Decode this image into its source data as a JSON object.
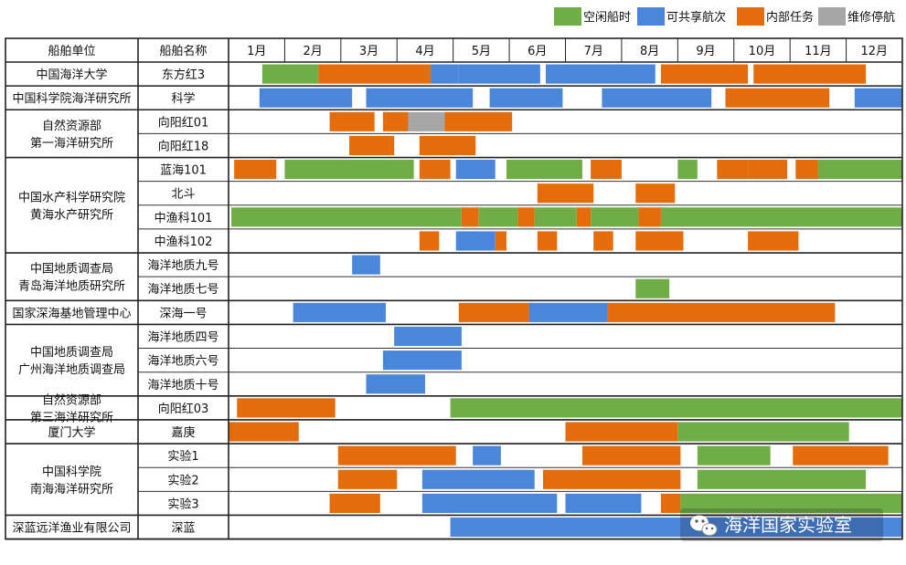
{
  "chart_data": {
    "type": "gantt",
    "title": "",
    "legend": [
      {
        "key": "idle",
        "label": "空闲船时",
        "color": "#70AD47"
      },
      {
        "key": "shared",
        "label": "可共享航次",
        "color": "#4A86D9"
      },
      {
        "key": "internal",
        "label": "内部任务",
        "color": "#E46C0A"
      },
      {
        "key": "repair",
        "label": "维修停航",
        "color": "#A6A6A6"
      }
    ],
    "header": {
      "unit": "船舶单位",
      "ship": "船舶名称"
    },
    "months": [
      "1月",
      "2月",
      "3月",
      "4月",
      "5月",
      "6月",
      "7月",
      "8月",
      "9月",
      "10月",
      "11月",
      "12月"
    ],
    "groups": [
      {
        "name": [
          "中国海洋大学"
        ],
        "ships": [
          {
            "name": "东方红3",
            "segments": [
              {
                "start": 0.6,
                "end": 1.6,
                "type": "idle"
              },
              {
                "start": 1.6,
                "end": 3.6,
                "type": "internal"
              },
              {
                "start": 3.6,
                "end": 4.1,
                "type": "shared"
              },
              {
                "start": 4.1,
                "end": 5.55,
                "type": "shared"
              },
              {
                "start": 5.65,
                "end": 7.6,
                "type": "shared"
              },
              {
                "start": 7.7,
                "end": 9.25,
                "type": "internal"
              },
              {
                "start": 9.35,
                "end": 11.35,
                "type": "internal"
              }
            ]
          }
        ]
      },
      {
        "name": [
          "中国科学院海洋研究所"
        ],
        "ships": [
          {
            "name": "科学",
            "segments": [
              {
                "start": 0.55,
                "end": 2.2,
                "type": "shared"
              },
              {
                "start": 2.45,
                "end": 4.35,
                "type": "shared"
              },
              {
                "start": 4.65,
                "end": 5.95,
                "type": "shared"
              },
              {
                "start": 6.65,
                "end": 8.6,
                "type": "shared"
              },
              {
                "start": 8.85,
                "end": 10.7,
                "type": "internal"
              },
              {
                "start": 11.15,
                "end": 12.0,
                "type": "shared"
              }
            ]
          }
        ]
      },
      {
        "name": [
          "自然资源部",
          "第一海洋研究所"
        ],
        "ships": [
          {
            "name": "向阳红01",
            "segments": [
              {
                "start": 1.8,
                "end": 2.6,
                "type": "internal"
              },
              {
                "start": 2.75,
                "end": 3.2,
                "type": "internal"
              },
              {
                "start": 3.2,
                "end": 3.85,
                "type": "repair"
              },
              {
                "start": 3.85,
                "end": 5.05,
                "type": "internal"
              }
            ]
          },
          {
            "name": "向阳红18",
            "segments": [
              {
                "start": 2.15,
                "end": 2.95,
                "type": "internal"
              },
              {
                "start": 3.4,
                "end": 4.4,
                "type": "internal"
              }
            ]
          }
        ]
      },
      {
        "name": [
          "中国水产科学研究院",
          "黄海水产研究所"
        ],
        "ships": [
          {
            "name": "蓝海101",
            "segments": [
              {
                "start": 0.1,
                "end": 0.85,
                "type": "internal"
              },
              {
                "start": 1.0,
                "end": 3.3,
                "type": "idle"
              },
              {
                "start": 3.4,
                "end": 3.95,
                "type": "internal"
              },
              {
                "start": 4.05,
                "end": 4.75,
                "type": "shared"
              },
              {
                "start": 4.95,
                "end": 6.3,
                "type": "idle"
              },
              {
                "start": 6.45,
                "end": 7.0,
                "type": "internal"
              },
              {
                "start": 8.0,
                "end": 8.35,
                "type": "idle"
              },
              {
                "start": 8.7,
                "end": 9.25,
                "type": "internal"
              },
              {
                "start": 9.25,
                "end": 9.95,
                "type": "internal"
              },
              {
                "start": 10.1,
                "end": 10.5,
                "type": "internal"
              },
              {
                "start": 10.5,
                "end": 12.0,
                "type": "idle"
              }
            ]
          },
          {
            "name": "北斗",
            "segments": [
              {
                "start": 5.5,
                "end": 6.5,
                "type": "internal"
              },
              {
                "start": 7.25,
                "end": 7.95,
                "type": "internal"
              }
            ]
          },
          {
            "name": "中渔科101",
            "segments": [
              {
                "start": 0.05,
                "end": 4.15,
                "type": "idle"
              },
              {
                "start": 4.15,
                "end": 4.45,
                "type": "internal"
              },
              {
                "start": 4.45,
                "end": 5.15,
                "type": "idle"
              },
              {
                "start": 5.15,
                "end": 5.45,
                "type": "internal"
              },
              {
                "start": 5.45,
                "end": 6.2,
                "type": "idle"
              },
              {
                "start": 6.2,
                "end": 6.45,
                "type": "internal"
              },
              {
                "start": 6.45,
                "end": 7.3,
                "type": "idle"
              },
              {
                "start": 7.3,
                "end": 7.7,
                "type": "internal"
              },
              {
                "start": 7.7,
                "end": 12.0,
                "type": "idle"
              }
            ]
          },
          {
            "name": "中渔科102",
            "segments": [
              {
                "start": 3.4,
                "end": 3.75,
                "type": "internal"
              },
              {
                "start": 4.05,
                "end": 4.75,
                "type": "shared"
              },
              {
                "start": 4.75,
                "end": 4.95,
                "type": "internal"
              },
              {
                "start": 5.5,
                "end": 5.85,
                "type": "internal"
              },
              {
                "start": 6.5,
                "end": 6.85,
                "type": "internal"
              },
              {
                "start": 7.25,
                "end": 8.1,
                "type": "internal"
              },
              {
                "start": 9.25,
                "end": 10.15,
                "type": "internal"
              }
            ]
          }
        ]
      },
      {
        "name": [
          "中国地质调查局",
          "青岛海洋地质研究所"
        ],
        "ships": [
          {
            "name": "海洋地质九号",
            "segments": [
              {
                "start": 2.2,
                "end": 2.7,
                "type": "shared"
              }
            ]
          },
          {
            "name": "海洋地质七号",
            "segments": [
              {
                "start": 7.25,
                "end": 7.85,
                "type": "idle"
              }
            ]
          }
        ]
      },
      {
        "name": [
          "国家深海基地管理中心"
        ],
        "ships": [
          {
            "name": "深海一号",
            "segments": [
              {
                "start": 1.15,
                "end": 2.8,
                "type": "shared"
              },
              {
                "start": 4.1,
                "end": 5.35,
                "type": "internal"
              },
              {
                "start": 5.35,
                "end": 6.75,
                "type": "shared"
              },
              {
                "start": 6.75,
                "end": 10.8,
                "type": "internal"
              }
            ]
          }
        ]
      },
      {
        "name": [
          "中国地质调查局",
          "广州海洋地质调查局"
        ],
        "ships": [
          {
            "name": "海洋地质四号",
            "segments": [
              {
                "start": 2.95,
                "end": 4.15,
                "type": "shared"
              }
            ]
          },
          {
            "name": "海洋地质六号",
            "segments": [
              {
                "start": 2.75,
                "end": 4.15,
                "type": "shared"
              }
            ]
          },
          {
            "name": "海洋地质十号",
            "segments": [
              {
                "start": 2.45,
                "end": 3.5,
                "type": "shared"
              }
            ]
          }
        ]
      },
      {
        "name": [
          "自然资源部",
          "第三海洋研究所"
        ],
        "ships": [
          {
            "name": "向阳红03",
            "segments": [
              {
                "start": 0.15,
                "end": 1.9,
                "type": "internal"
              },
              {
                "start": 3.95,
                "end": 12.0,
                "type": "idle"
              }
            ]
          }
        ]
      },
      {
        "name": [
          "厦门大学"
        ],
        "ships": [
          {
            "name": "嘉庚",
            "segments": [
              {
                "start": 0.0,
                "end": 1.25,
                "type": "internal"
              },
              {
                "start": 6.0,
                "end": 8.0,
                "type": "internal"
              },
              {
                "start": 8.0,
                "end": 11.05,
                "type": "idle"
              }
            ]
          }
        ]
      },
      {
        "name": [
          "中国科学院",
          "南海海洋研究所"
        ],
        "ships": [
          {
            "name": "实验1",
            "segments": [
              {
                "start": 1.95,
                "end": 4.05,
                "type": "internal"
              },
              {
                "start": 4.35,
                "end": 4.85,
                "type": "shared"
              },
              {
                "start": 6.3,
                "end": 8.05,
                "type": "internal"
              },
              {
                "start": 8.35,
                "end": 9.65,
                "type": "idle"
              },
              {
                "start": 10.05,
                "end": 11.75,
                "type": "internal"
              }
            ]
          },
          {
            "name": "实验2",
            "segments": [
              {
                "start": 1.95,
                "end": 3.0,
                "type": "internal"
              },
              {
                "start": 3.45,
                "end": 5.45,
                "type": "shared"
              },
              {
                "start": 5.6,
                "end": 8.05,
                "type": "internal"
              },
              {
                "start": 8.35,
                "end": 11.35,
                "type": "idle"
              }
            ]
          },
          {
            "name": "实验3",
            "segments": [
              {
                "start": 1.8,
                "end": 2.7,
                "type": "internal"
              },
              {
                "start": 3.45,
                "end": 5.85,
                "type": "shared"
              },
              {
                "start": 6.0,
                "end": 7.35,
                "type": "shared"
              },
              {
                "start": 7.7,
                "end": 8.05,
                "type": "internal"
              },
              {
                "start": 8.05,
                "end": 12.0,
                "type": "idle"
              }
            ]
          }
        ]
      },
      {
        "name": [
          "深蓝远洋渔业有限公司"
        ],
        "ships": [
          {
            "name": "深蓝",
            "segments": [
              {
                "start": 3.95,
                "end": 12.0,
                "type": "shared"
              }
            ]
          }
        ]
      }
    ]
  },
  "watermark": {
    "text": "海洋国家实验室",
    "icon": "wechat-icon"
  }
}
